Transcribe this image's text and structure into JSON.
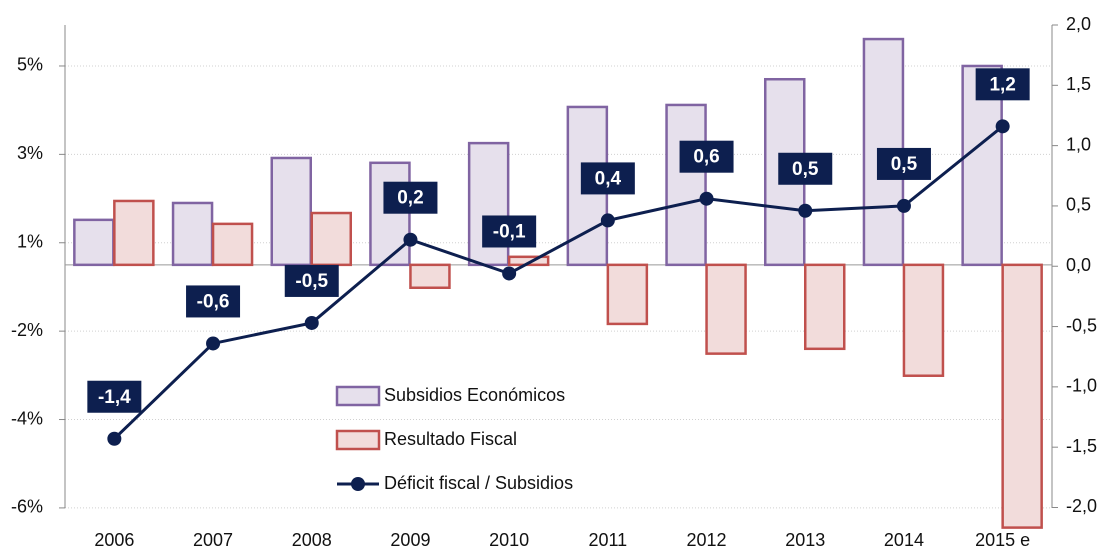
{
  "chart_data": {
    "type": "bar-line",
    "categories": [
      "2006",
      "2007",
      "2008",
      "2009",
      "2010",
      "2011",
      "2012",
      "2013",
      "2014",
      "2015 e"
    ],
    "series": [
      {
        "name": "Subsidios Económicos",
        "type": "bar",
        "color": "#8064a2",
        "fill": "#e6e0ec",
        "values": [
          1.12,
          1.54,
          2.66,
          2.54,
          3.03,
          3.93,
          3.98,
          4.62,
          5.62,
          4.95
        ]
      },
      {
        "name": "Resultado Fiscal",
        "type": "bar",
        "color": "#c0504d",
        "fill": "#f2dcdb",
        "values": [
          1.59,
          1.02,
          1.29,
          -0.57,
          0.2,
          -1.47,
          -2.21,
          -2.09,
          -2.76,
          -6.54
        ]
      },
      {
        "name": "Déficit fiscal / Subsidios",
        "type": "line",
        "axis": "y2",
        "color": "#0d1f4f",
        "values": [
          -1.43,
          -0.64,
          -0.47,
          0.22,
          -0.06,
          0.38,
          0.56,
          0.46,
          0.5,
          1.16
        ],
        "value_labels": [
          "-1,4",
          "-0,6",
          "-0,5",
          "0,2",
          "-0,1",
          "0,4",
          "0,6",
          "0,5",
          "0,5",
          "1,2"
        ]
      }
    ],
    "ylim": [
      -6.55,
      5.97
    ],
    "yticks": [
      {
        "value": -6.05,
        "label": "-6%"
      },
      {
        "value": -3.85,
        "label": "-4%"
      },
      {
        "value": -1.65,
        "label": "-2%"
      },
      {
        "value": 0.55,
        "label": "1%"
      },
      {
        "value": 2.75,
        "label": "3%"
      },
      {
        "value": 4.95,
        "label": "5%"
      }
    ],
    "y2lim": [
      -2.17,
      2.0
    ],
    "y2ticks": [
      {
        "value": -2.0,
        "label": "-2,0"
      },
      {
        "value": -1.5,
        "label": "-1,5"
      },
      {
        "value": -1.0,
        "label": "-1,0"
      },
      {
        "value": -0.5,
        "label": "-0,5"
      },
      {
        "value": 0,
        "label": "0,0"
      },
      {
        "value": 0.5,
        "label": "0,5"
      },
      {
        "value": 1.0,
        "label": "1,0"
      },
      {
        "value": 1.5,
        "label": "1,5"
      },
      {
        "value": 2.0,
        "label": "2,0"
      }
    ],
    "grid": true
  }
}
